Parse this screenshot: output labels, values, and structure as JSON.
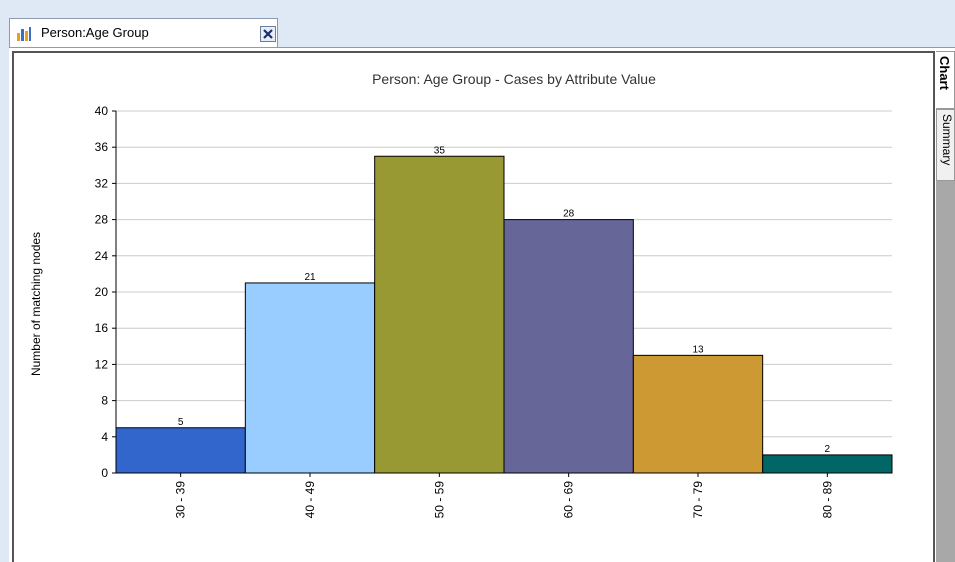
{
  "tab": {
    "title": "Person:Age Group",
    "icon": "bar-chart-icon",
    "close_icon": "close-icon"
  },
  "side_tabs": [
    {
      "label": "Chart",
      "active": true
    },
    {
      "label": "Summary",
      "active": false
    }
  ],
  "chart_data": {
    "type": "bar",
    "title": "Person: Age Group - Cases by Attribute Value",
    "xlabel": "",
    "ylabel": "Number of matching nodes",
    "ylim": [
      0,
      40
    ],
    "yticks": [
      0,
      4,
      8,
      12,
      16,
      20,
      24,
      28,
      32,
      36,
      40
    ],
    "grid": true,
    "categories": [
      "30 - 39",
      "40 - 49",
      "50 - 59",
      "60 - 69",
      "70 - 79",
      "80 - 89"
    ],
    "values": [
      5,
      21,
      35,
      28,
      13,
      2
    ],
    "colors": [
      "#3366cc",
      "#99ccff",
      "#999933",
      "#666699",
      "#cc9933",
      "#006666"
    ]
  }
}
